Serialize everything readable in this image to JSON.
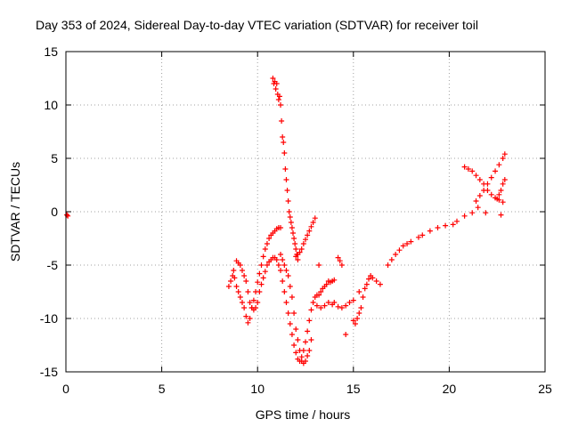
{
  "chart_data": {
    "type": "scatter",
    "title": "Day 353 of 2024, Sidereal Day-to-day VTEC variation (SDTVAR) for receiver toil",
    "xlabel": "GPS time / hours",
    "ylabel": "SDTVAR / TECUs",
    "xlim": [
      0,
      25
    ],
    "ylim": [
      -15,
      15
    ],
    "xticks": [
      "0",
      "5",
      "10",
      "15",
      "20",
      "25"
    ],
    "yticks": [
      "-15",
      "-10",
      "-5",
      "0",
      "5",
      "10",
      "15"
    ],
    "grid": true,
    "marker": "plus",
    "color": "#ff0000",
    "series": [
      {
        "name": "",
        "points": [
          [
            0.05,
            -0.3
          ],
          [
            0.1,
            -0.4
          ],
          [
            8.5,
            -7.0
          ],
          [
            8.6,
            -6.5
          ],
          [
            8.7,
            -6.0
          ],
          [
            8.75,
            -5.5
          ],
          [
            8.8,
            -6.2
          ],
          [
            8.9,
            -7.0
          ],
          [
            9.0,
            -7.5
          ],
          [
            9.1,
            -8.0
          ],
          [
            9.2,
            -8.5
          ],
          [
            9.3,
            -9.0
          ],
          [
            9.4,
            -9.8
          ],
          [
            9.5,
            -10.4
          ],
          [
            9.6,
            -10.0
          ],
          [
            9.7,
            -9.0
          ],
          [
            9.8,
            -8.3
          ],
          [
            9.9,
            -7.5
          ],
          [
            10.0,
            -6.6
          ],
          [
            10.1,
            -5.8
          ],
          [
            10.2,
            -5.0
          ],
          [
            10.3,
            -4.2
          ],
          [
            10.4,
            -3.5
          ],
          [
            10.5,
            -3.0
          ],
          [
            10.6,
            -2.5
          ],
          [
            10.7,
            -2.2
          ],
          [
            10.8,
            -2.0
          ],
          [
            10.9,
            -1.8
          ],
          [
            11.0,
            -1.6
          ],
          [
            11.1,
            -1.5
          ],
          [
            11.2,
            -1.5
          ],
          [
            8.9,
            -4.6
          ],
          [
            9.0,
            -4.8
          ],
          [
            9.1,
            -5.0
          ],
          [
            9.2,
            -5.5
          ],
          [
            9.3,
            -6.0
          ],
          [
            9.4,
            -6.5
          ],
          [
            9.5,
            -7.5
          ],
          [
            9.6,
            -8.5
          ],
          [
            9.7,
            -9.0
          ],
          [
            9.8,
            -9.2
          ],
          [
            9.9,
            -9.0
          ],
          [
            10.0,
            -8.5
          ],
          [
            10.1,
            -7.5
          ],
          [
            10.2,
            -6.8
          ],
          [
            10.3,
            -6.2
          ],
          [
            10.4,
            -5.6
          ],
          [
            10.5,
            -5.0
          ],
          [
            10.6,
            -4.7
          ],
          [
            10.7,
            -4.5
          ],
          [
            10.8,
            -4.3
          ],
          [
            10.9,
            -4.3
          ],
          [
            11.0,
            -4.5
          ],
          [
            11.1,
            -5.0
          ],
          [
            11.2,
            -5.5
          ],
          [
            11.3,
            -6.5
          ],
          [
            11.4,
            -7.5
          ],
          [
            11.5,
            -8.5
          ],
          [
            11.6,
            -9.5
          ],
          [
            11.7,
            -10.5
          ],
          [
            11.8,
            -11.5
          ],
          [
            11.9,
            -12.5
          ],
          [
            12.0,
            -13.2
          ],
          [
            12.1,
            -13.8
          ],
          [
            12.2,
            -14.0
          ],
          [
            12.3,
            -13.6
          ],
          [
            12.4,
            -13.0
          ],
          [
            12.5,
            -12.2
          ],
          [
            12.6,
            -11.2
          ],
          [
            12.7,
            -10.2
          ],
          [
            12.8,
            -9.2
          ],
          [
            12.9,
            -8.5
          ],
          [
            13.0,
            -8.0
          ],
          [
            13.1,
            -7.8
          ],
          [
            13.2,
            -7.8
          ],
          [
            13.3,
            -7.5
          ],
          [
            13.4,
            -7.2
          ],
          [
            13.5,
            -7.0
          ],
          [
            13.6,
            -6.8
          ],
          [
            13.7,
            -6.5
          ],
          [
            13.8,
            -6.6
          ],
          [
            13.9,
            -6.5
          ],
          [
            14.0,
            -6.4
          ],
          [
            10.8,
            12.5
          ],
          [
            10.85,
            12.0
          ],
          [
            10.9,
            12.2
          ],
          [
            10.95,
            11.5
          ],
          [
            11.0,
            12.0
          ],
          [
            11.05,
            11.0
          ],
          [
            11.1,
            10.5
          ],
          [
            11.15,
            10.8
          ],
          [
            11.2,
            10.0
          ],
          [
            11.25,
            8.5
          ],
          [
            11.3,
            7.0
          ],
          [
            11.35,
            6.5
          ],
          [
            11.4,
            5.5
          ],
          [
            11.45,
            4.0
          ],
          [
            11.5,
            3.0
          ],
          [
            11.55,
            2.0
          ],
          [
            11.6,
            1.0
          ],
          [
            11.65,
            0.0
          ],
          [
            11.7,
            -0.5
          ],
          [
            11.75,
            -1.0
          ],
          [
            11.8,
            -1.5
          ],
          [
            11.85,
            -2.0
          ],
          [
            11.9,
            -2.5
          ],
          [
            11.95,
            -3.0
          ],
          [
            12.0,
            -3.5
          ],
          [
            12.05,
            -4.0
          ],
          [
            12.1,
            -4.5
          ],
          [
            11.2,
            -4.0
          ],
          [
            11.3,
            -4.5
          ],
          [
            11.4,
            -5.0
          ],
          [
            11.5,
            -5.5
          ],
          [
            11.6,
            -6.0
          ],
          [
            11.7,
            -7.0
          ],
          [
            11.8,
            -8.0
          ],
          [
            11.9,
            -9.5
          ],
          [
            12.0,
            -11.0
          ],
          [
            12.1,
            -12.0
          ],
          [
            12.2,
            -13.0
          ],
          [
            12.3,
            -14.0
          ],
          [
            12.4,
            -14.2
          ],
          [
            12.5,
            -14.0
          ],
          [
            12.6,
            -13.5
          ],
          [
            12.7,
            -13.0
          ],
          [
            12.8,
            -12.0
          ],
          [
            12.0,
            -4.2
          ],
          [
            12.1,
            -4.0
          ],
          [
            12.2,
            -3.8
          ],
          [
            12.3,
            -3.5
          ],
          [
            12.4,
            -3.0
          ],
          [
            12.5,
            -2.6
          ],
          [
            12.6,
            -2.2
          ],
          [
            12.7,
            -1.8
          ],
          [
            12.8,
            -1.4
          ],
          [
            12.9,
            -1.0
          ],
          [
            13.0,
            -0.6
          ],
          [
            13.1,
            -8.8
          ],
          [
            13.3,
            -9.0
          ],
          [
            13.5,
            -8.8
          ],
          [
            13.7,
            -8.5
          ],
          [
            13.9,
            -8.7
          ],
          [
            14.0,
            -8.5
          ],
          [
            14.2,
            -8.9
          ],
          [
            14.4,
            -9.0
          ],
          [
            14.6,
            -8.8
          ],
          [
            14.8,
            -8.5
          ],
          [
            15.0,
            -8.3
          ],
          [
            14.2,
            -4.3
          ],
          [
            14.3,
            -4.6
          ],
          [
            14.4,
            -5.0
          ],
          [
            13.2,
            -5.0
          ],
          [
            15.1,
            -10.5
          ],
          [
            15.2,
            -10.0
          ],
          [
            15.3,
            -9.5
          ],
          [
            15.4,
            -9.0
          ],
          [
            15.5,
            -8.0
          ],
          [
            15.6,
            -7.2
          ],
          [
            15.7,
            -6.8
          ],
          [
            15.8,
            -6.3
          ],
          [
            15.9,
            -6.0
          ],
          [
            16.0,
            -6.2
          ],
          [
            16.2,
            -6.5
          ],
          [
            16.4,
            -6.8
          ],
          [
            14.6,
            -11.5
          ],
          [
            15.0,
            -10.2
          ],
          [
            15.3,
            -7.5
          ],
          [
            16.8,
            -5.0
          ],
          [
            17.0,
            -4.5
          ],
          [
            17.2,
            -4.0
          ],
          [
            17.4,
            -3.6
          ],
          [
            17.6,
            -3.2
          ],
          [
            17.8,
            -3.0
          ],
          [
            18.0,
            -2.8
          ],
          [
            18.4,
            -2.4
          ],
          [
            18.6,
            -2.2
          ],
          [
            19.0,
            -1.8
          ],
          [
            19.4,
            -1.5
          ],
          [
            19.8,
            -1.3
          ],
          [
            20.2,
            -1.2
          ],
          [
            20.4,
            -0.9
          ],
          [
            20.8,
            -0.4
          ],
          [
            21.2,
            -0.1
          ],
          [
            21.5,
            0.4
          ],
          [
            20.8,
            4.2
          ],
          [
            21.0,
            4.0
          ],
          [
            21.2,
            3.8
          ],
          [
            21.4,
            3.4
          ],
          [
            21.6,
            3.0
          ],
          [
            21.8,
            2.6
          ],
          [
            22.0,
            2.0
          ],
          [
            22.2,
            1.6
          ],
          [
            22.4,
            1.3
          ],
          [
            22.6,
            1.1
          ],
          [
            22.8,
            0.9
          ],
          [
            21.4,
            1.0
          ],
          [
            21.6,
            1.5
          ],
          [
            21.8,
            2.0
          ],
          [
            22.0,
            2.6
          ],
          [
            22.2,
            3.2
          ],
          [
            22.4,
            3.8
          ],
          [
            22.6,
            4.4
          ],
          [
            22.8,
            5.0
          ],
          [
            22.9,
            5.4
          ],
          [
            22.5,
            1.2
          ],
          [
            22.6,
            1.6
          ],
          [
            22.7,
            2.0
          ],
          [
            22.8,
            2.6
          ],
          [
            22.9,
            3.0
          ],
          [
            22.7,
            -0.3
          ],
          [
            21.9,
            -0.1
          ]
        ]
      }
    ]
  }
}
